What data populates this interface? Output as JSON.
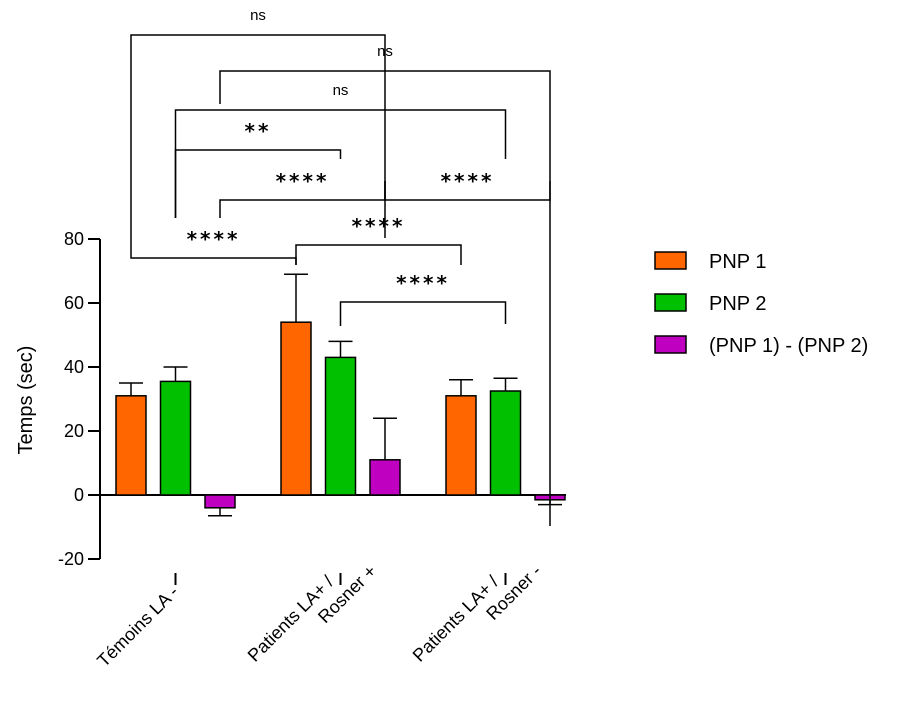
{
  "chart_data": {
    "type": "bar",
    "ylabel": "Temps (sec)",
    "xlabel": "",
    "ylim": [
      -20,
      80
    ],
    "yticks": [
      -20,
      0,
      20,
      40,
      60,
      80
    ],
    "grid": false,
    "legend_position": "right",
    "categories": [
      [
        "Témoins LA -"
      ],
      [
        "Patients LA+ /",
        "Rosner +"
      ],
      [
        "Patients LA+ /",
        "Rosner -"
      ]
    ],
    "series": [
      {
        "name": "PNP 1",
        "color": "#ff6600",
        "values": [
          31,
          54,
          31
        ],
        "errors": [
          4,
          15,
          5
        ]
      },
      {
        "name": "PNP 2",
        "color": "#00c000",
        "values": [
          35.5,
          43,
          32.5
        ],
        "errors": [
          4.5,
          5,
          4
        ]
      },
      {
        "name": "(PNP 1) - (PNP 2)",
        "color": "#c000c0",
        "values": [
          -4,
          11,
          -1.5
        ],
        "errors": [
          2.5,
          13,
          1.5
        ]
      }
    ],
    "comparisons": [
      {
        "label": "ns",
        "from": [
          0,
          0
        ],
        "to": [
          1,
          2
        ]
      },
      {
        "label": "ns",
        "from": [
          0,
          2
        ],
        "to": [
          2,
          2
        ]
      },
      {
        "label": "ns",
        "from": [
          0,
          1
        ],
        "to": [
          2,
          1
        ]
      },
      {
        "label": "**",
        "from": [
          0,
          1
        ],
        "to": [
          1,
          1
        ]
      },
      {
        "label": "****",
        "from": [
          0,
          2
        ],
        "to": [
          1,
          2
        ]
      },
      {
        "label": "****",
        "from": [
          1,
          2
        ],
        "to": [
          2,
          2
        ]
      },
      {
        "label": "****",
        "from": [
          0,
          0
        ],
        "to": [
          1,
          0
        ]
      },
      {
        "label": "****",
        "from": [
          1,
          0
        ],
        "to": [
          2,
          0
        ]
      },
      {
        "label": "****",
        "from": [
          1,
          1
        ],
        "to": [
          2,
          1
        ]
      }
    ]
  }
}
